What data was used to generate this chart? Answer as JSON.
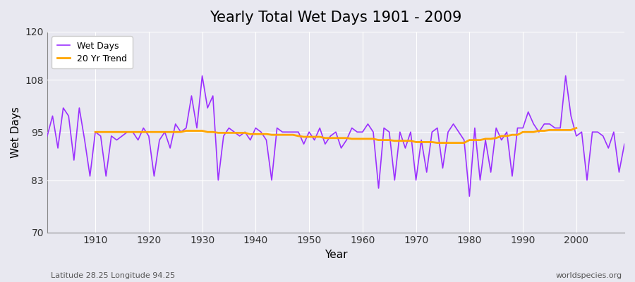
{
  "title": "Yearly Total Wet Days 1901 - 2009",
  "xlabel": "Year",
  "ylabel": "Wet Days",
  "footnote_left": "Latitude 28.25 Longitude 94.25",
  "footnote_right": "worldspecies.org",
  "ylim": [
    70,
    120
  ],
  "yticks": [
    70,
    83,
    95,
    108,
    120
  ],
  "xlim": [
    1901,
    2009
  ],
  "xticks": [
    1910,
    1920,
    1930,
    1940,
    1950,
    1960,
    1970,
    1980,
    1990,
    2000
  ],
  "wet_days_color": "#9B30FF",
  "trend_color": "#FFA500",
  "background_color": "#E8E8F0",
  "grid_color": "#FFFFFF",
  "legend_label_wet": "Wet Days",
  "legend_label_trend": "20 Yr Trend",
  "years": [
    1901,
    1902,
    1903,
    1904,
    1905,
    1906,
    1907,
    1908,
    1909,
    1910,
    1911,
    1912,
    1913,
    1914,
    1915,
    1916,
    1917,
    1918,
    1919,
    1920,
    1921,
    1922,
    1923,
    1924,
    1925,
    1926,
    1927,
    1928,
    1929,
    1930,
    1931,
    1932,
    1933,
    1934,
    1935,
    1936,
    1937,
    1938,
    1939,
    1940,
    1941,
    1942,
    1943,
    1944,
    1945,
    1946,
    1947,
    1948,
    1949,
    1950,
    1951,
    1952,
    1953,
    1954,
    1955,
    1956,
    1957,
    1958,
    1959,
    1960,
    1961,
    1962,
    1963,
    1964,
    1965,
    1966,
    1967,
    1968,
    1969,
    1970,
    1971,
    1972,
    1973,
    1974,
    1975,
    1976,
    1977,
    1978,
    1979,
    1980,
    1981,
    1982,
    1983,
    1984,
    1985,
    1986,
    1987,
    1988,
    1989,
    1990,
    1991,
    1992,
    1993,
    1994,
    1995,
    1996,
    1997,
    1998,
    1999,
    2000,
    2001,
    2002,
    2003,
    2004,
    2005,
    2006,
    2007,
    2008,
    2009
  ],
  "wet_days": [
    94,
    99,
    91,
    101,
    99,
    88,
    101,
    93,
    84,
    95,
    94,
    84,
    94,
    93,
    94,
    95,
    95,
    93,
    96,
    94,
    84,
    93,
    95,
    91,
    97,
    95,
    96,
    104,
    96,
    109,
    101,
    104,
    83,
    94,
    96,
    95,
    94,
    95,
    93,
    96,
    95,
    93,
    83,
    96,
    95,
    95,
    95,
    95,
    92,
    95,
    93,
    96,
    92,
    94,
    95,
    91,
    93,
    96,
    95,
    95,
    97,
    95,
    81,
    96,
    95,
    83,
    95,
    91,
    95,
    83,
    93,
    85,
    95,
    96,
    86,
    95,
    97,
    95,
    93,
    79,
    96,
    83,
    93,
    85,
    96,
    93,
    95,
    84,
    96,
    96,
    100,
    97,
    95,
    97,
    97,
    96,
    96,
    109,
    99,
    94,
    95,
    83,
    95,
    95,
    94,
    91,
    95,
    85,
    92
  ],
  "trend_years": [
    1910,
    1911,
    1912,
    1913,
    1914,
    1915,
    1916,
    1917,
    1918,
    1919,
    1920,
    1921,
    1922,
    1923,
    1924,
    1925,
    1926,
    1927,
    1928,
    1929,
    1930,
    1931,
    1932,
    1933,
    1934,
    1935,
    1936,
    1937,
    1938,
    1939,
    1940,
    1941,
    1942,
    1943,
    1944,
    1945,
    1946,
    1947,
    1948,
    1949,
    1950,
    1951,
    1952,
    1953,
    1954,
    1955,
    1956,
    1957,
    1958,
    1959,
    1960,
    1961,
    1962,
    1963,
    1964,
    1965,
    1966,
    1967,
    1968,
    1969,
    1970,
    1971,
    1972,
    1973,
    1974,
    1975,
    1976,
    1977,
    1978,
    1979,
    1980,
    1981,
    1982,
    1983,
    1984,
    1985,
    1986,
    1987,
    1988,
    1989,
    1990,
    1991,
    1992,
    1993,
    1994,
    1995,
    1996,
    1997,
    1998,
    1999,
    2000
  ],
  "trend_values": [
    95.0,
    95.0,
    95.0,
    95.0,
    95.0,
    95.0,
    95.0,
    95.0,
    95.0,
    95.0,
    95.0,
    95.0,
    95.0,
    95.0,
    95.0,
    95.0,
    95.0,
    95.3,
    95.3,
    95.3,
    95.3,
    95.0,
    95.0,
    94.8,
    94.8,
    94.8,
    94.8,
    94.8,
    94.8,
    94.5,
    94.5,
    94.5,
    94.5,
    94.3,
    94.3,
    94.3,
    94.3,
    94.3,
    94.0,
    93.8,
    93.8,
    93.8,
    93.8,
    93.5,
    93.5,
    93.5,
    93.5,
    93.5,
    93.3,
    93.3,
    93.3,
    93.3,
    93.3,
    93.0,
    93.0,
    93.0,
    92.8,
    92.8,
    92.8,
    92.8,
    92.5,
    92.5,
    92.5,
    92.5,
    92.3,
    92.3,
    92.3,
    92.3,
    92.3,
    92.3,
    93.0,
    93.0,
    93.0,
    93.3,
    93.3,
    93.5,
    94.0,
    94.0,
    94.3,
    94.3,
    95.0,
    95.0,
    95.0,
    95.3,
    95.3,
    95.5,
    95.5,
    95.5,
    95.5,
    95.5,
    96.0
  ]
}
